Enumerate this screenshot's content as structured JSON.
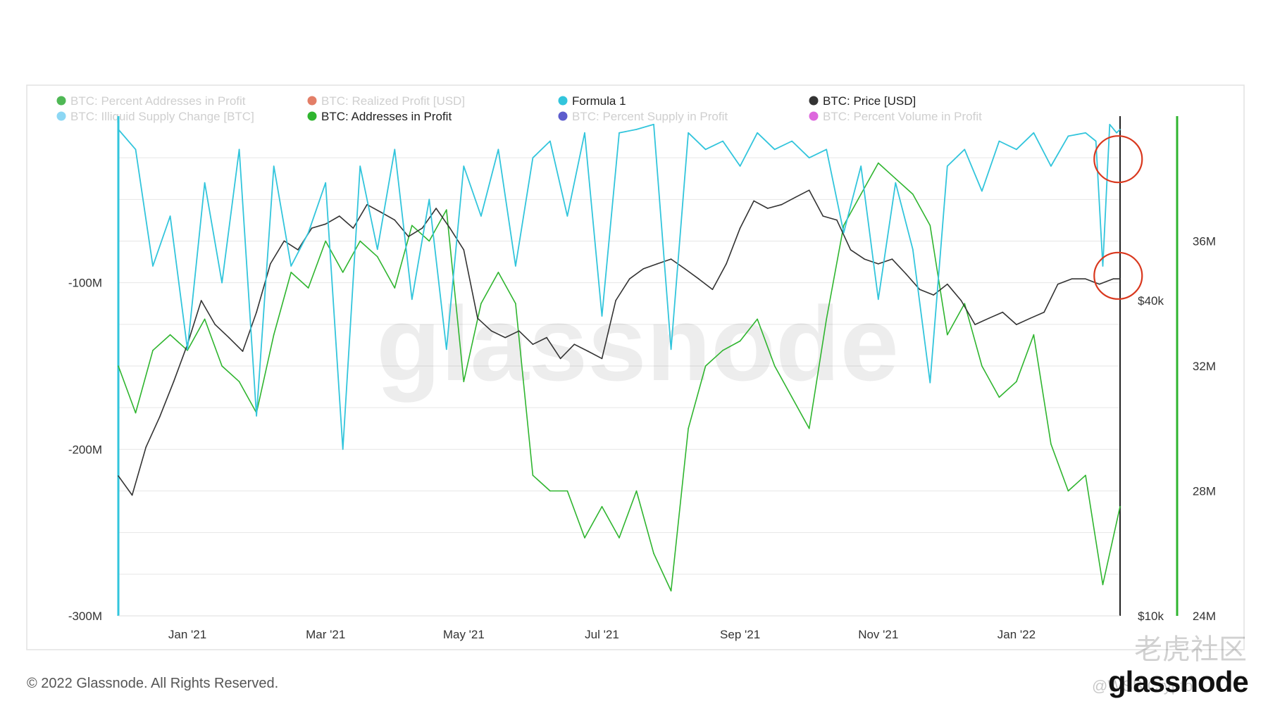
{
  "chart_data": {
    "type": "line",
    "legend": [
      {
        "name": "BTC: Percent Addresses in Profit",
        "color": "#3cb043",
        "active": false
      },
      {
        "name": "BTC: Realized Profit [USD]",
        "color": "#e07057",
        "active": false
      },
      {
        "name": "Formula 1",
        "color": "#32c5dc",
        "active": true
      },
      {
        "name": "BTC: Price [USD]",
        "color": "#333333",
        "active": true
      },
      {
        "name": "BTC: Illiquid Supply Change [BTC]",
        "color": "#7fd3f3",
        "active": false
      },
      {
        "name": "BTC: Addresses in Profit",
        "color": "#2fb52f",
        "active": true
      },
      {
        "name": "BTC: Percent Supply in Profit",
        "color": "#4a4ac8",
        "active": false
      },
      {
        "name": "BTC: Percent Volume in Profit",
        "color": "#d957d9",
        "active": false
      }
    ],
    "x_ticks": [
      "Jan '21",
      "Mar '21",
      "May '21",
      "Jul '21",
      "Sep '21",
      "Nov '21",
      "Jan '22"
    ],
    "x_tick_months": [
      1,
      3,
      5,
      7,
      9,
      11,
      13
    ],
    "x_range_months": [
      0,
      14.5
    ],
    "left_axis": {
      "ticks": [
        "-100M",
        "-200M",
        "-300M"
      ],
      "tick_values": [
        -100,
        -200,
        -300
      ],
      "range": [
        -300,
        0
      ]
    },
    "price_axis": {
      "ticks": [
        "$40k",
        "$10k"
      ],
      "tick_values": [
        40000,
        10000
      ],
      "scale": "log",
      "range": [
        10000,
        90000
      ]
    },
    "addresses_axis": {
      "ticks": [
        "36M",
        "32M",
        "28M",
        "24M"
      ],
      "tick_values": [
        36,
        32,
        28,
        24
      ],
      "range": [
        24,
        40
      ]
    },
    "series": [
      {
        "name": "Formula 1",
        "color": "#32c5dc",
        "axis": "left",
        "x": [
          0,
          0.25,
          0.5,
          0.75,
          1.0,
          1.25,
          1.5,
          1.75,
          2.0,
          2.25,
          2.5,
          2.75,
          3.0,
          3.25,
          3.5,
          3.75,
          4.0,
          4.25,
          4.5,
          4.75,
          5.0,
          5.25,
          5.5,
          5.75,
          6.0,
          6.25,
          6.5,
          6.75,
          7.0,
          7.25,
          7.5,
          7.75,
          8.0,
          8.25,
          8.5,
          8.75,
          9.0,
          9.25,
          9.5,
          9.75,
          10.0,
          10.25,
          10.5,
          10.75,
          11.0,
          11.25,
          11.5,
          11.75,
          12.0,
          12.25,
          12.5,
          12.75,
          13.0,
          13.25,
          13.5,
          13.75,
          14.0,
          14.15,
          14.25,
          14.35,
          14.45,
          14.5
        ],
        "y": [
          -8,
          -20,
          -90,
          -60,
          -140,
          -40,
          -100,
          -20,
          -180,
          -30,
          -90,
          -70,
          -40,
          -200,
          -30,
          -80,
          -20,
          -110,
          -50,
          -140,
          -30,
          -60,
          -20,
          -90,
          -25,
          -15,
          -60,
          -10,
          -120,
          -10,
          -8,
          -5,
          -140,
          -10,
          -20,
          -15,
          -30,
          -10,
          -20,
          -15,
          -25,
          -20,
          -70,
          -30,
          -110,
          -40,
          -80,
          -160,
          -30,
          -20,
          -45,
          -15,
          -20,
          -10,
          -30,
          -12,
          -10,
          -15,
          -90,
          -5,
          -10,
          -8
        ]
      },
      {
        "name": "BTC: Price [USD]",
        "color": "#333333",
        "axis": "price",
        "x": [
          0,
          0.2,
          0.4,
          0.6,
          0.8,
          1.0,
          1.2,
          1.4,
          1.6,
          1.8,
          2.0,
          2.2,
          2.4,
          2.6,
          2.8,
          3.0,
          3.2,
          3.4,
          3.6,
          3.8,
          4.0,
          4.2,
          4.4,
          4.6,
          4.8,
          5.0,
          5.2,
          5.4,
          5.6,
          5.8,
          6.0,
          6.2,
          6.4,
          6.6,
          6.8,
          7.0,
          7.2,
          7.4,
          7.6,
          7.8,
          8.0,
          8.2,
          8.4,
          8.6,
          8.8,
          9.0,
          9.2,
          9.4,
          9.6,
          9.8,
          10.0,
          10.2,
          10.4,
          10.6,
          10.8,
          11.0,
          11.2,
          11.4,
          11.6,
          11.8,
          12.0,
          12.2,
          12.4,
          12.6,
          12.8,
          13.0,
          13.2,
          13.4,
          13.6,
          13.8,
          14.0,
          14.2,
          14.4,
          14.5
        ],
        "y": [
          18500,
          17000,
          21000,
          24000,
          28000,
          33000,
          40000,
          36000,
          34000,
          32000,
          38000,
          47000,
          52000,
          50000,
          55000,
          56000,
          58000,
          55000,
          61000,
          59000,
          57000,
          53000,
          55000,
          60000,
          55000,
          50000,
          37000,
          35000,
          34000,
          35000,
          33000,
          34000,
          31000,
          33000,
          32000,
          31000,
          40000,
          44000,
          46000,
          47000,
          48000,
          46000,
          44000,
          42000,
          47000,
          55000,
          62000,
          60000,
          61000,
          63000,
          65000,
          58000,
          57000,
          50000,
          48000,
          47000,
          48000,
          45000,
          42000,
          41000,
          43000,
          40000,
          36000,
          37000,
          38000,
          36000,
          37000,
          38000,
          43000,
          44000,
          44000,
          43000,
          44000,
          44000
        ]
      },
      {
        "name": "BTC: Addresses in Profit",
        "color": "#2fb52f",
        "axis": "addresses",
        "x": [
          0,
          0.25,
          0.5,
          0.75,
          1.0,
          1.25,
          1.5,
          1.75,
          2.0,
          2.25,
          2.5,
          2.75,
          3.0,
          3.25,
          3.5,
          3.75,
          4.0,
          4.25,
          4.5,
          4.75,
          5.0,
          5.25,
          5.5,
          5.75,
          6.0,
          6.25,
          6.5,
          6.75,
          7.0,
          7.25,
          7.5,
          7.75,
          8.0,
          8.25,
          8.5,
          8.75,
          9.0,
          9.25,
          9.5,
          9.75,
          10.0,
          10.25,
          10.5,
          10.75,
          11.0,
          11.25,
          11.5,
          11.75,
          12.0,
          12.25,
          12.5,
          12.75,
          13.0,
          13.25,
          13.5,
          13.75,
          14.0,
          14.25,
          14.5
        ],
        "y": [
          32,
          30.5,
          32.5,
          33,
          32.5,
          33.5,
          32,
          31.5,
          30.5,
          33,
          35,
          34.5,
          36,
          35,
          36,
          35.5,
          34.5,
          36.5,
          36,
          37,
          31.5,
          34,
          35,
          34,
          28.5,
          28,
          28,
          26.5,
          27.5,
          26.5,
          28,
          26,
          24.8,
          30,
          32,
          32.5,
          32.8,
          33.5,
          32,
          31,
          30,
          33.5,
          36.5,
          37.5,
          38.5,
          38,
          37.5,
          36.5,
          33,
          34,
          32,
          31,
          31.5,
          33,
          29.5,
          28,
          28.5,
          25,
          27.5
        ]
      }
    ],
    "annotations": [
      {
        "type": "circle",
        "color": "#d9381e",
        "x": 14.35,
        "series": "Formula 1",
        "y": -25
      },
      {
        "type": "circle",
        "color": "#d9381e",
        "x": 14.35,
        "series": "Formula 1",
        "y": -95
      }
    ],
    "watermark": "glassnode",
    "grid": true,
    "legend_placement": "top-left"
  },
  "footer": {
    "copyright": "© 2022 Glassnode. All Rights Reserved.",
    "brand": "glassnode",
    "community_mark": "老虎社区",
    "handle": "@WSB Crypto"
  },
  "colors": {
    "grid": "#e6e6e6",
    "frame": "#e2e2e2",
    "formula_axis": "#32c5dc",
    "addresses_axis": "#2fb52f",
    "price_axis": "#222222"
  }
}
